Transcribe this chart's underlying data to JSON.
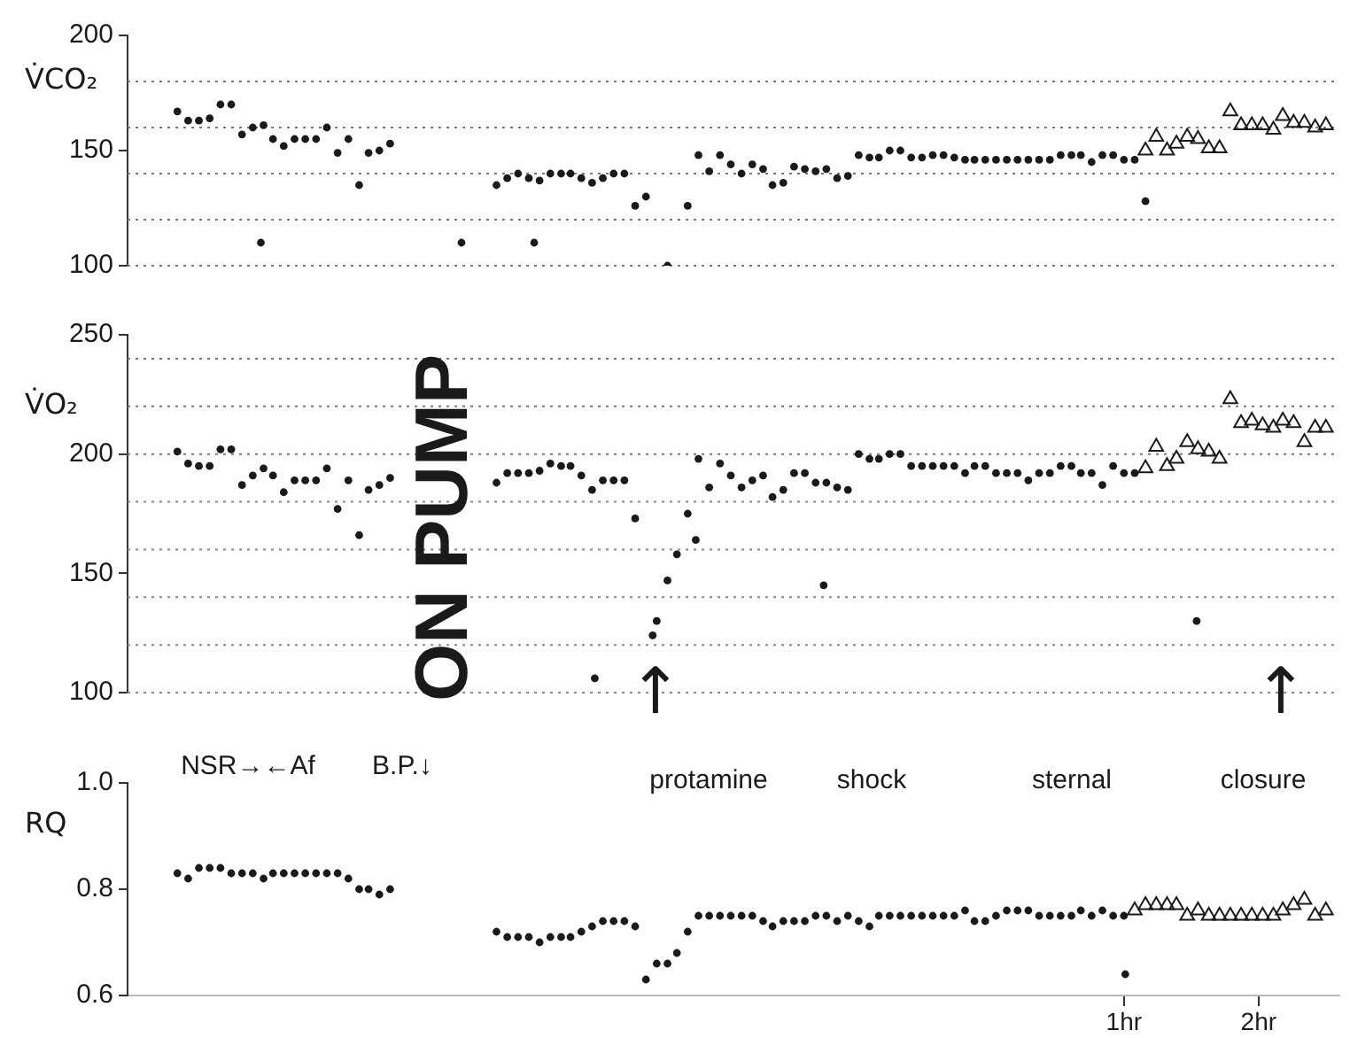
{
  "chart_data": [
    {
      "type": "scatter",
      "ylabel": "V̇CO₂",
      "xlim": [
        -6.4,
        2.6
      ],
      "ylim": [
        100,
        200
      ],
      "yticks": [
        100,
        150,
        200
      ],
      "tick_labels": "y",
      "ref_lines": [
        {
          "axis": "y",
          "value": 100,
          "line_style": "dotted",
          "color": "#777777"
        },
        {
          "axis": "y",
          "value": 120,
          "line_style": "dotted",
          "color": "#777777"
        },
        {
          "axis": "y",
          "value": 140,
          "line_style": "dotted",
          "color": "#777777"
        },
        {
          "axis": "y",
          "value": 160,
          "line_style": "dotted",
          "color": "#777777"
        },
        {
          "axis": "y",
          "value": 180,
          "line_style": "dotted",
          "color": "#777777"
        }
      ],
      "series": [
        {
          "color": "#1a1a1a",
          "marker": "circle",
          "x": [
            -6.03,
            -5.95,
            -5.87,
            -5.79,
            -5.71,
            -5.63,
            -5.55,
            -5.47,
            -5.39,
            -5.32,
            -5.24,
            -5.16,
            -5.08,
            -5,
            -4.92,
            -4.84,
            -4.76,
            -4.68,
            -4.61,
            -4.53,
            -4.45,
            -5.41,
            -3.92,
            -3.38,
            -3.66,
            -3.58,
            -3.5,
            -3.42,
            -3.34,
            -3.26,
            -3.18,
            -3.11,
            -3.03,
            -2.95,
            -2.87,
            -2.79,
            -2.71,
            -2.63,
            -2.55,
            -2.39,
            -2.24,
            -2.16,
            -2.08,
            -2,
            -1.92,
            -1.84,
            -1.76,
            -1.68,
            -1.61,
            -1.53,
            -1.45,
            -1.37,
            -1.29,
            -1.21,
            -1.13,
            -1.05,
            -0.97,
            -0.89,
            -0.82,
            -0.74,
            -0.66,
            -0.58,
            -0.5,
            -0.42,
            -0.34,
            -0.26,
            -0.18,
            -0.11,
            -0.03,
            0.05,
            0.13,
            0.21,
            0.29,
            0.37,
            0.45,
            0.53,
            0.61,
            0.68,
            0.76,
            0.84,
            0.92,
            1,
            1.08,
            1.16
          ],
          "values": [
            167,
            163,
            163,
            164,
            170,
            170,
            157,
            160,
            161,
            155,
            152,
            155,
            155,
            155,
            160,
            149,
            155,
            135,
            149,
            150,
            153,
            110,
            110,
            110,
            135,
            138,
            140,
            138,
            137,
            140,
            140,
            140,
            138,
            136,
            138,
            140,
            140,
            126,
            130,
            100,
            126,
            148,
            141,
            148,
            144,
            140,
            144,
            142,
            135,
            136,
            143,
            142,
            141,
            142,
            138,
            139,
            148,
            147,
            147,
            150,
            150,
            147,
            147,
            148,
            148,
            147,
            146,
            146,
            146,
            146,
            146,
            146,
            146,
            146,
            146,
            148,
            148,
            148,
            145,
            148,
            148,
            146,
            146,
            128
          ]
        },
        {
          "color": "#1a1a1a",
          "marker": "triangle",
          "x": [
            1.16,
            1.24,
            1.32,
            1.39,
            1.47,
            1.55,
            1.63,
            1.71,
            1.79,
            1.87,
            1.95,
            2.03,
            2.11,
            2.18,
            2.26,
            2.34,
            2.42,
            2.5
          ],
          "values": [
            150,
            156,
            150,
            153,
            156,
            155,
            151,
            151,
            167,
            161,
            161,
            161,
            159,
            165,
            162,
            162,
            160,
            161
          ]
        }
      ]
    },
    {
      "type": "scatter",
      "ylabel": "V̇O₂",
      "xlim": [
        -6.4,
        2.6
      ],
      "ylim": [
        100,
        250
      ],
      "yticks": [
        100,
        150,
        200,
        250
      ],
      "tick_labels": "y",
      "ref_lines": [
        {
          "axis": "y",
          "value": 100,
          "line_style": "dotted",
          "color": "#888888"
        },
        {
          "axis": "y",
          "value": 120,
          "line_style": "dotted",
          "color": "#888888"
        },
        {
          "axis": "y",
          "value": 140,
          "line_style": "dotted",
          "color": "#888888"
        },
        {
          "axis": "y",
          "value": 160,
          "line_style": "dotted",
          "color": "#888888"
        },
        {
          "axis": "y",
          "value": 180,
          "line_style": "dotted",
          "color": "#888888"
        },
        {
          "axis": "y",
          "value": 200,
          "line_style": "dotted",
          "color": "#777777"
        },
        {
          "axis": "y",
          "value": 220,
          "line_style": "dotted",
          "color": "#777777"
        },
        {
          "axis": "y",
          "value": 240,
          "line_style": "dotted",
          "color": "#777777"
        }
      ],
      "annotations": [
        "ON PUMP",
        "↑",
        "↑"
      ],
      "series": [
        {
          "color": "#1a1a1a",
          "marker": "circle",
          "x": [
            -6.03,
            -5.95,
            -5.87,
            -5.79,
            -5.71,
            -5.63,
            -5.55,
            -5.47,
            -5.39,
            -5.32,
            -5.24,
            -5.16,
            -5.08,
            -5,
            -4.92,
            -4.84,
            -4.76,
            -4.68,
            -4.61,
            -4.53,
            -4.45,
            -3.66,
            -3.58,
            -3.5,
            -3.42,
            -3.34,
            -3.26,
            -3.18,
            -3.11,
            -3.03,
            -2.95,
            -2.87,
            -2.79,
            -2.71,
            -2.63,
            -2.5,
            -2.47,
            -2.39,
            -2.32,
            -2.24,
            -2.18,
            -2.16,
            -2.08,
            -2,
            -1.92,
            -1.84,
            -1.76,
            -1.68,
            -1.61,
            -1.53,
            -1.45,
            -1.37,
            -1.29,
            -1.21,
            -1.13,
            -1.05,
            -0.97,
            -0.89,
            -0.82,
            -0.74,
            -0.66,
            -0.58,
            -0.5,
            -0.42,
            -0.34,
            -0.26,
            -0.18,
            -0.11,
            -0.03,
            0.05,
            0.13,
            0.21,
            0.29,
            0.37,
            0.45,
            0.53,
            0.61,
            0.68,
            0.76,
            0.84,
            0.92,
            1,
            1.08,
            -2.93,
            -1.23,
            1.54
          ],
          "values": [
            201,
            196,
            195,
            195,
            202,
            202,
            187,
            191,
            194,
            191,
            184,
            189,
            189,
            189,
            194,
            177,
            189,
            166,
            185,
            187,
            190,
            188,
            192,
            192,
            192,
            193,
            196,
            195,
            195,
            191,
            185,
            189,
            189,
            189,
            173,
            124,
            130,
            147,
            158,
            175,
            164,
            198,
            186,
            196,
            191,
            186,
            189,
            191,
            182,
            185,
            192,
            192,
            188,
            188,
            186,
            185,
            200,
            198,
            198,
            200,
            200,
            195,
            195,
            195,
            195,
            195,
            192,
            195,
            195,
            192,
            192,
            192,
            189,
            192,
            192,
            195,
            195,
            192,
            192,
            187,
            195,
            192,
            192,
            106,
            145,
            130
          ]
        },
        {
          "color": "#1a1a1a",
          "marker": "triangle",
          "x": [
            1.16,
            1.24,
            1.32,
            1.39,
            1.47,
            1.55,
            1.63,
            1.71,
            1.79,
            1.87,
            1.95,
            2.03,
            2.11,
            2.18,
            2.26,
            2.34,
            2.42,
            2.5
          ],
          "values": [
            194,
            203,
            195,
            198,
            205,
            202,
            201,
            198,
            223,
            213,
            214,
            212,
            211,
            214,
            213,
            205,
            211,
            211
          ]
        }
      ]
    },
    {
      "type": "scatter",
      "ylabel": "RQ",
      "xlim": [
        -6.4,
        2.6
      ],
      "ylim": [
        0.6,
        1
      ],
      "yticks": [
        0.6,
        0.8,
        {
          "value": 1,
          "label": "1.0"
        }
      ],
      "xticks": [
        {
          "value": 1,
          "label": "1hr"
        },
        {
          "value": 2,
          "label": "2hr"
        }
      ],
      "annotations": [
        "NSR→←Af",
        "B.P.↓",
        "protamine",
        "shock",
        "sternal",
        "closure"
      ],
      "series": [
        {
          "color": "#1a1a1a",
          "marker": "circle",
          "x": [
            -6.03,
            -5.95,
            -5.87,
            -5.79,
            -5.71,
            -5.63,
            -5.55,
            -5.47,
            -5.39,
            -5.32,
            -5.24,
            -5.16,
            -5.08,
            -5,
            -4.92,
            -4.84,
            -4.76,
            -4.68,
            -4.61,
            -4.53,
            -4.45,
            -3.66,
            -3.58,
            -3.5,
            -3.42,
            -3.34,
            -3.26,
            -3.18,
            -3.11,
            -3.03,
            -2.95,
            -2.87,
            -2.79,
            -2.71,
            -2.63,
            -2.55,
            -2.47,
            -2.39,
            -2.32,
            -2.24,
            -2.16,
            -2.08,
            -2,
            -1.92,
            -1.84,
            -1.76,
            -1.68,
            -1.61,
            -1.53,
            -1.45,
            -1.37,
            -1.29,
            -1.21,
            -1.13,
            -1.05,
            -0.97,
            -0.89,
            -0.82,
            -0.74,
            -0.66,
            -0.58,
            -0.5,
            -0.42,
            -0.34,
            -0.26,
            -0.18,
            -0.11,
            -0.03,
            0.05,
            0.13,
            0.21,
            0.29,
            0.37,
            0.45,
            0.53,
            0.61,
            0.68,
            0.76,
            0.84,
            0.92,
            1,
            1.01
          ],
          "values": [
            0.83,
            0.82,
            0.84,
            0.84,
            0.84,
            0.83,
            0.83,
            0.83,
            0.82,
            0.83,
            0.83,
            0.83,
            0.83,
            0.83,
            0.83,
            0.83,
            0.82,
            0.8,
            0.8,
            0.79,
            0.8,
            0.72,
            0.71,
            0.71,
            0.71,
            0.7,
            0.71,
            0.71,
            0.71,
            0.72,
            0.73,
            0.74,
            0.74,
            0.74,
            0.73,
            0.63,
            0.66,
            0.66,
            0.68,
            0.72,
            0.75,
            0.75,
            0.75,
            0.75,
            0.75,
            0.75,
            0.74,
            0.73,
            0.74,
            0.74,
            0.74,
            0.75,
            0.75,
            0.74,
            0.75,
            0.74,
            0.73,
            0.75,
            0.75,
            0.75,
            0.75,
            0.75,
            0.75,
            0.75,
            0.75,
            0.76,
            0.74,
            0.74,
            0.75,
            0.76,
            0.76,
            0.76,
            0.75,
            0.75,
            0.75,
            0.75,
            0.76,
            0.75,
            0.76,
            0.75,
            0.75,
            0.64
          ]
        },
        {
          "color": "#1a1a1a",
          "marker": "triangle",
          "x": [
            1.08,
            1.16,
            1.24,
            1.32,
            1.39,
            1.47,
            1.55,
            1.63,
            1.71,
            1.79,
            1.87,
            1.95,
            2.03,
            2.11,
            2.18,
            2.26,
            2.34,
            2.42,
            2.5
          ],
          "values": [
            0.76,
            0.77,
            0.77,
            0.77,
            0.77,
            0.75,
            0.76,
            0.75,
            0.75,
            0.75,
            0.75,
            0.75,
            0.75,
            0.75,
            0.76,
            0.77,
            0.78,
            0.75,
            0.76
          ]
        }
      ]
    }
  ]
}
